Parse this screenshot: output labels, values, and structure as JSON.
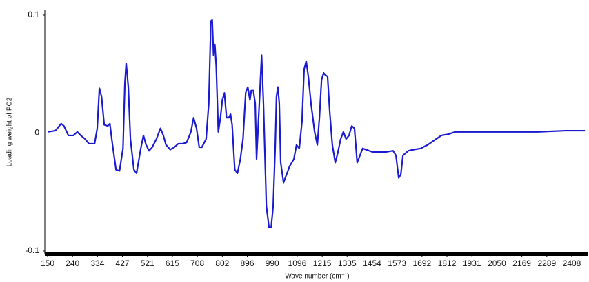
{
  "chart_data": {
    "type": "line",
    "x_label": "Wave number (cm⁻¹)",
    "y_label": "Loading weight  of PC2",
    "color": "#1a1ad0",
    "xlim": [
      150,
      2471
    ],
    "xticks": [
      150,
      240,
      334,
      427,
      521,
      615,
      708,
      802,
      896,
      990,
      1096,
      1215,
      1335,
      1454,
      1573,
      1692,
      1812,
      1931,
      2050,
      2169,
      2289,
      2408
    ],
    "ylim": [
      -0.1,
      0.1
    ],
    "yticks": [
      -0.1,
      0,
      0.1
    ],
    "grid": false,
    "x": [
      150,
      178,
      199,
      209,
      225,
      243,
      258,
      271,
      287,
      302,
      323,
      333,
      341,
      349,
      359,
      372,
      380,
      390,
      403,
      416,
      429,
      436,
      441,
      449,
      457,
      470,
      480,
      496,
      506,
      516,
      527,
      539,
      555,
      570,
      581,
      591,
      607,
      622,
      637,
      653,
      668,
      684,
      694,
      705,
      715,
      725,
      741,
      751,
      759,
      764,
      769,
      774,
      779,
      787,
      795,
      802,
      810,
      818,
      826,
      833,
      839,
      849,
      859,
      870,
      880,
      890,
      898,
      906,
      911,
      919,
      926,
      931,
      942,
      950,
      957,
      968,
      978,
      986,
      994,
      1003,
      1008,
      1014,
      1020,
      1026,
      1038,
      1049,
      1064,
      1082,
      1093,
      1106,
      1119,
      1129,
      1139,
      1149,
      1162,
      1179,
      1192,
      1202,
      1212,
      1222,
      1231,
      1241,
      1251,
      1264,
      1278,
      1291,
      1304,
      1317,
      1330,
      1344,
      1357,
      1370,
      1383,
      1396,
      1409,
      1456,
      1521,
      1554,
      1568,
      1574,
      1581,
      1591,
      1601,
      1627,
      1653,
      1686,
      1719,
      1752,
      1785,
      1818,
      1851,
      1917,
      2049,
      2247,
      2378,
      2471
    ],
    "values": [
      0.001,
      0.002,
      0.008,
      0.006,
      -0.002,
      -0.002,
      0.001,
      -0.002,
      -0.005,
      -0.009,
      -0.009,
      0.004,
      0.038,
      0.031,
      0.007,
      0.006,
      0.008,
      -0.01,
      -0.031,
      -0.032,
      -0.013,
      0.042,
      0.059,
      0.039,
      -0.005,
      -0.031,
      -0.034,
      -0.013,
      -0.002,
      -0.01,
      -0.015,
      -0.012,
      -0.005,
      0.004,
      -0.002,
      -0.01,
      -0.014,
      -0.012,
      -0.009,
      -0.009,
      -0.008,
      0.001,
      0.013,
      0.004,
      -0.012,
      -0.012,
      -0.005,
      0.025,
      0.095,
      0.096,
      0.066,
      0.075,
      0.057,
      0.001,
      0.013,
      0.028,
      0.034,
      0.013,
      0.013,
      0.016,
      0.007,
      -0.031,
      -0.034,
      -0.022,
      -0.005,
      0.034,
      0.039,
      0.028,
      0.036,
      0.036,
      0.025,
      -0.022,
      0.028,
      0.066,
      0.025,
      -0.062,
      -0.08,
      -0.08,
      -0.062,
      -0.01,
      0.031,
      0.039,
      0.025,
      -0.025,
      -0.042,
      -0.036,
      -0.028,
      -0.022,
      -0.01,
      -0.013,
      0.01,
      0.054,
      0.061,
      0.048,
      0.025,
      0.001,
      -0.01,
      0.013,
      0.045,
      0.051,
      0.049,
      0.048,
      0.019,
      -0.01,
      -0.025,
      -0.016,
      -0.005,
      0.001,
      -0.005,
      -0.002,
      0.006,
      0.004,
      -0.025,
      -0.019,
      -0.013,
      -0.016,
      -0.016,
      -0.015,
      -0.019,
      -0.028,
      -0.038,
      -0.035,
      -0.019,
      -0.015,
      -0.014,
      -0.013,
      -0.01,
      -0.006,
      -0.002,
      -0.001,
      0.001,
      0.001,
      0.001,
      0.001,
      0.002,
      0.002
    ]
  }
}
